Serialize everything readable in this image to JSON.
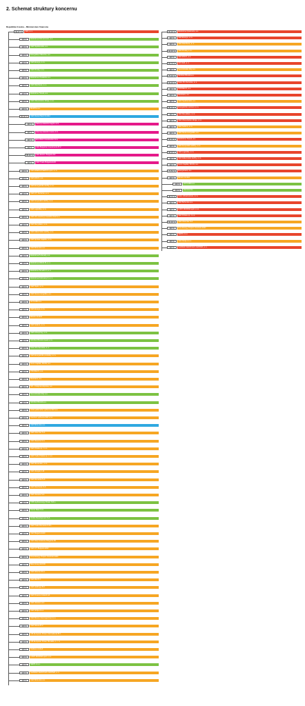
{
  "title": "2. Schemat struktury koncernu",
  "root_label": "Republika Czeska – Ministerstwo finansów",
  "colors": {
    "green": "#7cc242",
    "orange": "#f6a623",
    "red": "#e8452c",
    "blue": "#2fa8e0",
    "magenta": "#e5198a"
  },
  "left_nodes": [
    {
      "d": 0,
      "pct": "69,37 %",
      "name": "ČEZ, a. s.",
      "color": "red"
    },
    {
      "d": 1,
      "pct": "100 %",
      "name": "Elektrárna Dětmarovice, a.s.",
      "color": "green"
    },
    {
      "d": 1,
      "pct": "100 %",
      "name": "ČEZ Teplárenská, a.s.",
      "color": "green"
    },
    {
      "d": 1,
      "pct": "100 %",
      "name": "Energetika Vítkovice, a.s.",
      "color": "green"
    },
    {
      "d": 1,
      "pct": "100 %",
      "name": "CEZ Energo, s.r.o.",
      "color": "green"
    },
    {
      "d": 1,
      "pct": "100 %",
      "name": "ČEZ Prodej, s.r.o.",
      "color": "green"
    },
    {
      "d": 1,
      "pct": "100 %",
      "name": "Elektrárna Chvaletice a.s.",
      "color": "green"
    },
    {
      "d": 1,
      "pct": "100 %",
      "name": "ČEZ Distribuce, a. s.",
      "color": "green"
    },
    {
      "d": 1,
      "pct": "100 %",
      "name": "Elektrárna Tisová, a.s.",
      "color": "green"
    },
    {
      "d": 1,
      "pct": "100 %",
      "name": "ČEZ Obnovitelné zdroje, s.r.o.",
      "color": "green"
    },
    {
      "d": 1,
      "pct": "100 %",
      "name": "MARTIA a.s.",
      "color": "orange"
    },
    {
      "d": 1,
      "pct": "95,00 %",
      "name": "CEZ Deutschland GmbH",
      "color": "blue"
    },
    {
      "d": 2,
      "pct": "100 %",
      "name": "Sakarya Elektrik Dagitim A.S.",
      "color": "magenta"
    },
    {
      "d": 2,
      "pct": "100 %",
      "name": "Akenerji Elektrik Üretim A.S.",
      "color": "magenta"
    },
    {
      "d": 2,
      "pct": "100 %",
      "name": "Eco-Wind Construction S.A.",
      "color": "magenta"
    },
    {
      "d": 2,
      "pct": "100 %",
      "name": "CEZ Bulgarian Investments B.V.",
      "color": "magenta"
    },
    {
      "d": 2,
      "pct": "85,00 %",
      "name": "CEZ Elektro Bulgaria AD",
      "color": "magenta"
    },
    {
      "d": 2,
      "pct": "100 %",
      "name": "CEZ Trade Bulgaria EAD",
      "color": "magenta"
    },
    {
      "d": 1,
      "pct": "100 %",
      "name": "ČEZ ENERGOSERVIS spol. s r.o.",
      "color": "orange"
    },
    {
      "d": 1,
      "pct": "100 %",
      "name": "ČEZ ESCO, a.s.",
      "color": "orange"
    },
    {
      "d": 1,
      "pct": "100 %",
      "name": "ČEZ Energetické služby, s.r.o.",
      "color": "orange"
    },
    {
      "d": 1,
      "pct": "100 %",
      "name": "ČEZ ICT Services, a. s.",
      "color": "orange"
    },
    {
      "d": 1,
      "pct": "100 %",
      "name": "ČEZ Korporátní služby, s.r.o.",
      "color": "orange"
    },
    {
      "d": 1,
      "pct": "100 %",
      "name": "ČEZ Logistika, s.r.o.",
      "color": "orange"
    },
    {
      "d": 1,
      "pct": "100 %",
      "name": "ČEZ OZ uzavřený investiční fond a.s.",
      "color": "orange"
    },
    {
      "d": 1,
      "pct": "100 %",
      "name": "ČEZ Recyklace, s.r.o.",
      "color": "orange"
    },
    {
      "d": 1,
      "pct": "100 %",
      "name": "ČEZ Zákaznické služby, s.r.o.",
      "color": "orange"
    },
    {
      "d": 1,
      "pct": "100 %",
      "name": "ČEZ Správa majetku, s.r.o.",
      "color": "orange"
    },
    {
      "d": 1,
      "pct": "100 %",
      "name": "ČEZ Bohunice a.s.",
      "color": "orange"
    },
    {
      "d": 1,
      "pct": "100 %",
      "name": "Elektrárna Počerady, a.s.",
      "color": "green"
    },
    {
      "d": 1,
      "pct": "100 %",
      "name": "Elektrárna Mělník III, a. s.",
      "color": "green"
    },
    {
      "d": 1,
      "pct": "100 %",
      "name": "Elektrárna Temelín II, a. s.",
      "color": "green"
    },
    {
      "d": 1,
      "pct": "100 %",
      "name": "Elektrárna Dukovany II, a. s.",
      "color": "green"
    },
    {
      "d": 1,
      "pct": "100 %",
      "name": "ČEZ Teplo, s.r.o.",
      "color": "orange"
    },
    {
      "d": 1,
      "pct": "100 %",
      "name": "ČEZ Nová energetika, a.s.",
      "color": "orange"
    },
    {
      "d": 1,
      "pct": "100 %",
      "name": "AZ KLIMA a.s.",
      "color": "orange"
    },
    {
      "d": 1,
      "pct": "100 %",
      "name": "ČEZ Energo, s.r.o.",
      "color": "orange"
    },
    {
      "d": 1,
      "pct": "100 %",
      "name": "Elevion GmbH",
      "color": "orange"
    },
    {
      "d": 1,
      "pct": "100 %",
      "name": "ČEZ Solární, s.r.o.",
      "color": "orange"
    },
    {
      "d": 1,
      "pct": "100 %",
      "name": "ČEZ Inženýring, s.r.o.",
      "color": "green"
    },
    {
      "d": 1,
      "pct": "100 %",
      "name": "ŠKODA PRAHA Invest s.r.o.",
      "color": "green"
    },
    {
      "d": 1,
      "pct": "100 %",
      "name": "Telco Pro Services, a. s.",
      "color": "green"
    },
    {
      "d": 1,
      "pct": "100 %",
      "name": "ČEZ Energetické produkty, s.r.o.",
      "color": "orange"
    },
    {
      "d": 1,
      "pct": "100 %",
      "name": "Inven Capital, SICAV, a.s.",
      "color": "orange"
    },
    {
      "d": 1,
      "pct": "100 %",
      "name": "PRODECO, a.s.",
      "color": "orange"
    },
    {
      "d": 1,
      "pct": "100 %",
      "name": "Revitrans, a.s.",
      "color": "orange"
    },
    {
      "d": 1,
      "pct": "100 %",
      "name": "SD – Kolejová doprava, a.s.",
      "color": "orange"
    },
    {
      "d": 1,
      "pct": "100 %",
      "name": "Severočeské doly a.s.",
      "color": "green"
    },
    {
      "d": 1,
      "pct": "100 %",
      "name": "ŠKODA PRAHA a.s.",
      "color": "green"
    },
    {
      "d": 1,
      "pct": "100 %",
      "name": "Ústav jaderného výzkumu Řež a.s.",
      "color": "orange"
    },
    {
      "d": 1,
      "pct": "100 %",
      "name": "Centrum výzkumu Řež s.r.o.",
      "color": "orange"
    },
    {
      "d": 1,
      "pct": "100 %",
      "name": "ČEZ Bohunice a.s.",
      "color": "blue"
    },
    {
      "d": 1,
      "pct": "100 %",
      "name": "CEZ Chorzów S.A.",
      "color": "orange"
    },
    {
      "d": 1,
      "pct": "100 %",
      "name": "CEZ Skawina S.A.",
      "color": "orange"
    },
    {
      "d": 1,
      "pct": "100 %",
      "name": "CEZ Polska sp. z o.o.",
      "color": "orange"
    },
    {
      "d": 1,
      "pct": "100 %",
      "name": "CEZ Trade Polska sp. z o.o.",
      "color": "orange"
    },
    {
      "d": 1,
      "pct": "100 %",
      "name": "CEZ Slovensko, s.r.o.",
      "color": "orange"
    },
    {
      "d": 1,
      "pct": "100 %",
      "name": "CEZ Hungary Ltd.",
      "color": "orange"
    },
    {
      "d": 1,
      "pct": "100 %",
      "name": "CEZ Romania S.A.",
      "color": "orange"
    },
    {
      "d": 1,
      "pct": "100 %",
      "name": "CEZ Distributie S.A.",
      "color": "orange"
    },
    {
      "d": 1,
      "pct": "100 %",
      "name": "CEZ Vanzare S.A.",
      "color": "orange"
    },
    {
      "d": 1,
      "pct": "100 %",
      "name": "TMK Hydroenergy Power S.R.L.",
      "color": "green"
    },
    {
      "d": 1,
      "pct": "100 %",
      "name": "Tomis Team S.A.",
      "color": "green"
    },
    {
      "d": 1,
      "pct": "100 %",
      "name": "Ovidiu Development S.A.",
      "color": "green"
    },
    {
      "d": 1,
      "pct": "100 %",
      "name": "CEZ Trade Romania S.R.L.",
      "color": "orange"
    },
    {
      "d": 1,
      "pct": "100 %",
      "name": "CEZ Bulgaria EAD",
      "color": "orange"
    },
    {
      "d": 1,
      "pct": "100 %",
      "name": "CEZ Razpredelenie Bulgaria AD",
      "color": "orange"
    },
    {
      "d": 1,
      "pct": "100 %",
      "name": "CEZ ICT Bulgaria EAD",
      "color": "orange"
    },
    {
      "d": 1,
      "pct": "100 %",
      "name": "Free Energy Project Oreshets EAD",
      "color": "orange"
    },
    {
      "d": 1,
      "pct": "100 %",
      "name": "Bara Group EOOD",
      "color": "orange"
    },
    {
      "d": 1,
      "pct": "100 %",
      "name": "CEZ Albania Sh.A.",
      "color": "orange"
    },
    {
      "d": 1,
      "pct": "100 %",
      "name": "CEZ MH B.V.",
      "color": "orange"
    },
    {
      "d": 1,
      "pct": "100 %",
      "name": "CEZ Holdings B.V.",
      "color": "orange"
    },
    {
      "d": 1,
      "pct": "100 %",
      "name": "CEZ Finance Ireland Ltd.",
      "color": "orange"
    },
    {
      "d": 1,
      "pct": "100 %",
      "name": "CEZ Ukraine LLC",
      "color": "orange"
    },
    {
      "d": 1,
      "pct": "100 %",
      "name": "CEZ Srbija d.o.o.",
      "color": "orange"
    },
    {
      "d": 1,
      "pct": "100 %",
      "name": "CEZ Bosna i Hercegovina d.o.o.",
      "color": "orange"
    },
    {
      "d": 1,
      "pct": "100 %",
      "name": "CEZ Silesia B.V.",
      "color": "orange"
    },
    {
      "d": 1,
      "pct": "100 %",
      "name": "CM European Power International B.V.",
      "color": "orange"
    },
    {
      "d": 1,
      "pct": "100 %",
      "name": "CM European Power Slovakia, s. r. o.",
      "color": "orange"
    },
    {
      "d": 1,
      "pct": "100 %",
      "name": "Taidana Limited",
      "color": "orange"
    },
    {
      "d": 1,
      "pct": "100 %",
      "name": "LOMY MOŘINA spol. s r.o.",
      "color": "orange"
    },
    {
      "d": 1,
      "pct": "100 %",
      "name": "NERS d.o.o.",
      "color": "green"
    },
    {
      "d": 1,
      "pct": "100 %",
      "name": "SHARED SERVICES CENTER, a. s.",
      "color": "orange"
    },
    {
      "d": 1,
      "pct": "100 %",
      "name": "ČEZ Bohunice a.s.",
      "color": "orange"
    }
  ],
  "right_nodes": [
    {
      "d": 0,
      "pct": "66,00 %",
      "name": "Elektrárna Opatovice, a.s.",
      "color": "red"
    },
    {
      "d": 0,
      "pct": "100 %",
      "name": "ČEZ Energo, s.r.o.",
      "color": "red"
    },
    {
      "d": 0,
      "pct": "100 %",
      "name": "ČEZ Distribuce, a. s.",
      "color": "orange"
    },
    {
      "d": 0,
      "pct": "94,00 %",
      "name": "ČEZ Prodej, s.r.o.",
      "color": "orange"
    },
    {
      "d": 0,
      "pct": "100 %",
      "name": "ČEZ ESCO, a.s.",
      "color": "red"
    },
    {
      "d": 0,
      "pct": "83,79 %",
      "name": "ÚJV Řež, a. s.",
      "color": "red"
    },
    {
      "d": 0,
      "pct": "100 %",
      "name": "Severočeské doly a.s.",
      "color": "orange"
    },
    {
      "d": 0,
      "pct": "75,00 %",
      "name": "ŠKODA PRAHA a.s.",
      "color": "red"
    },
    {
      "d": 0,
      "pct": "93,00 %",
      "name": "Telco Pro Services, a. s.",
      "color": "red"
    },
    {
      "d": 0,
      "pct": "100 %",
      "name": "PRODECO, a.s.",
      "color": "red"
    },
    {
      "d": 0,
      "pct": "100 %",
      "name": "Revitrans, a.s.",
      "color": "red"
    },
    {
      "d": 0,
      "pct": "100 %",
      "name": "ČEZ Teplárenská, a.s.",
      "color": "orange"
    },
    {
      "d": 0,
      "pct": "85,00 %",
      "name": "Energetické centrum s.r.o.",
      "color": "red"
    },
    {
      "d": 0,
      "pct": "100 %",
      "name": "ČEZ Recyklace, s.r.o.",
      "color": "red"
    },
    {
      "d": 0,
      "pct": "100 %",
      "name": "ČEZ Obnovitelné zdroje, s.r.o.",
      "color": "red"
    },
    {
      "d": 0,
      "pct": "100 %",
      "name": "ČEZ Solární, s.r.o.",
      "color": "orange"
    },
    {
      "d": 0,
      "pct": "100 %",
      "name": "ČEZ Nová energetika, a.s.",
      "color": "orange"
    },
    {
      "d": 0,
      "pct": "96,00 %",
      "name": "Elektrárna Tisová, a.s.",
      "color": "red"
    },
    {
      "d": 0,
      "pct": "100 %",
      "name": "ČEZ Korporátní služby, s.r.o.",
      "color": "orange"
    },
    {
      "d": 0,
      "pct": "98,00 %",
      "name": "ČEZ Logistika, s.r.o.",
      "color": "red"
    },
    {
      "d": 0,
      "pct": "100 %",
      "name": "ČEZ Zákaznické služby, s.r.o.",
      "color": "red"
    },
    {
      "d": 0,
      "pct": "100 %",
      "name": "Inven Capital, SICAV, a.s.",
      "color": "red"
    },
    {
      "d": 0,
      "pct": "73,53 %",
      "name": "Energotrans, a.s.",
      "color": "red"
    },
    {
      "d": 0,
      "pct": "100 %",
      "name": "Elevion GmbH",
      "color": "orange"
    },
    {
      "d": 1,
      "pct": "100 %",
      "name": "AZ KLIMA a.s.",
      "color": "green"
    },
    {
      "d": 1,
      "pct": "100 %",
      "name": "Hermos AG",
      "color": "green"
    },
    {
      "d": 0,
      "pct": "48,70 %",
      "name": "Telco Infrastructure, s.r.o.",
      "color": "red"
    },
    {
      "d": 0,
      "pct": "100 %",
      "name": "ČEZ Bohunice a.s.",
      "color": "red"
    },
    {
      "d": 0,
      "pct": "100 %",
      "name": "LOMY MOŘINA spol. s r.o.",
      "color": "red"
    },
    {
      "d": 0,
      "pct": "100 %",
      "name": "CEZ Polska sp. z o.o.",
      "color": "red"
    },
    {
      "d": 0,
      "pct": "50,00 %",
      "name": "CEZ Chorzów S.A.",
      "color": "orange"
    },
    {
      "d": 0,
      "pct": "100 %",
      "name": "Free Energy Project Oreshets EAD",
      "color": "orange"
    },
    {
      "d": 0,
      "pct": "100 %",
      "name": "NERS d.o.o.",
      "color": "red"
    },
    {
      "d": 0,
      "pct": "100 %",
      "name": "CEZ Srbija d.o.o.",
      "color": "orange"
    },
    {
      "d": 0,
      "pct": "100 %",
      "name": "SHARED SERVICES CENTER, a. s.",
      "color": "red"
    }
  ]
}
